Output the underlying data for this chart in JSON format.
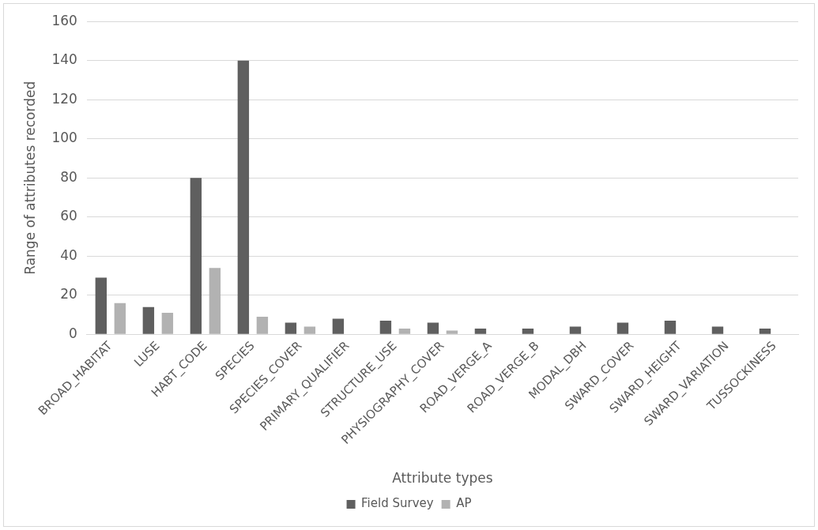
{
  "chart_data": {
    "type": "bar",
    "xlabel": "Attribute types",
    "ylabel": "Range of attributes recorded",
    "categories": [
      "BROAD_HABITAT",
      "LUSE",
      "HABT_CODE",
      "SPECIES",
      "SPECIES_COVER",
      "PRIMARY_QUALIFIER",
      "STRUCTURE_USE",
      "PHYSIOGRAPHY_COVER",
      "ROAD_VERGE_A",
      "ROAD_VERGE_B",
      "MODAL_DBH",
      "SWARD_COVER",
      "SWARD_HEIGHT",
      "SWARD_VARIATION",
      "TUSSOCKINESS"
    ],
    "series": [
      {
        "name": "Field Survey",
        "color": "#5f5f5f",
        "values": [
          29,
          14,
          80,
          140,
          6,
          8,
          7,
          6,
          3,
          3,
          4,
          6,
          7,
          4,
          3
        ]
      },
      {
        "name": "AP",
        "color": "#b2b2b2",
        "values": [
          16,
          11,
          34,
          9,
          4,
          0,
          3,
          2,
          0,
          0,
          0,
          0,
          0,
          0,
          0
        ]
      }
    ],
    "ylim": [
      0,
      160
    ],
    "yticks": [
      0,
      20,
      40,
      60,
      80,
      100,
      120,
      140,
      160
    ],
    "grid": "y",
    "legend": "bottom"
  }
}
